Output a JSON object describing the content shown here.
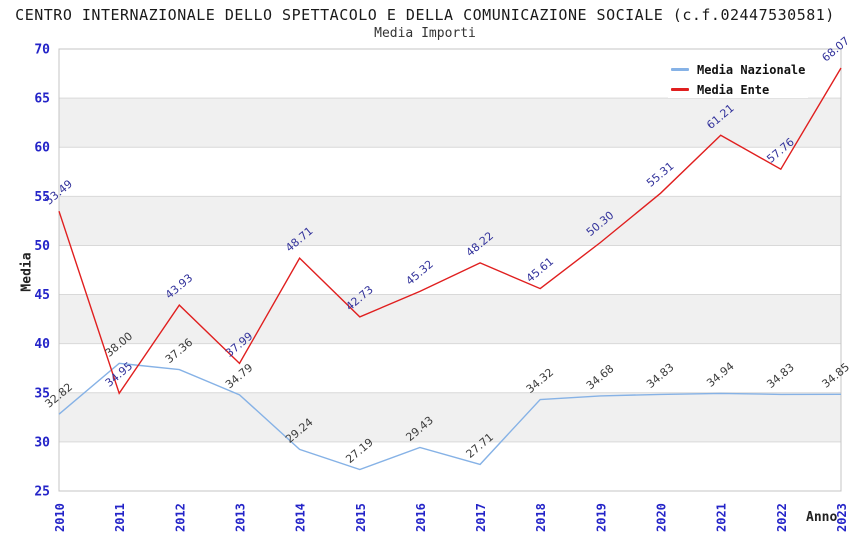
{
  "header": {
    "title": "CENTRO INTERNAZIONALE DELLO SPETTACOLO E DELLA COMUNICAZIONE SOCIALE (c.f.02447530581)",
    "subtitle": "Media Importi"
  },
  "axes": {
    "y_label": "Media",
    "x_label": "Anno"
  },
  "legend": {
    "items": [
      {
        "label": "Media Nazionale",
        "color": "#86b2e6"
      },
      {
        "label": "Media Ente",
        "color": "#e01f1f"
      }
    ]
  },
  "colors": {
    "nazionale_line": "#86b2e6",
    "ente_line": "#e01f1f",
    "nazionale_label": "#3a3a3a",
    "ente_label": "#32329b",
    "axis_tick": "#2424c8",
    "grid": "#d9d9d9",
    "band": "#f0f0f0",
    "border": "#c4c4c4"
  },
  "chart_data": {
    "type": "line",
    "title": "CENTRO INTERNAZIONALE DELLO SPETTACOLO E DELLA COMUNICAZIONE SOCIALE (c.f.02447530581)",
    "subtitle": "Media Importi",
    "xlabel": "Anno",
    "ylabel": "Media",
    "ylim": [
      25,
      70
    ],
    "ytick_step": 5,
    "grid": true,
    "legend_position": "top-right",
    "categories": [
      "2010",
      "2011",
      "2012",
      "2013",
      "2014",
      "2015",
      "2016",
      "2017",
      "2018",
      "2019",
      "2020",
      "2021",
      "2022",
      "2023"
    ],
    "series": [
      {
        "name": "Media Nazionale",
        "color": "#86b2e6",
        "label_color": "#3a3a3a",
        "values": [
          32.82,
          38.0,
          37.36,
          34.79,
          29.24,
          27.19,
          29.43,
          27.71,
          34.32,
          34.68,
          34.83,
          34.94,
          34.83,
          34.85
        ]
      },
      {
        "name": "Media Ente",
        "color": "#e01f1f",
        "label_color": "#32329b",
        "values": [
          53.49,
          34.95,
          43.93,
          37.99,
          48.71,
          42.73,
          45.32,
          48.22,
          45.61,
          50.3,
          55.31,
          61.21,
          57.76,
          68.07
        ]
      }
    ]
  }
}
